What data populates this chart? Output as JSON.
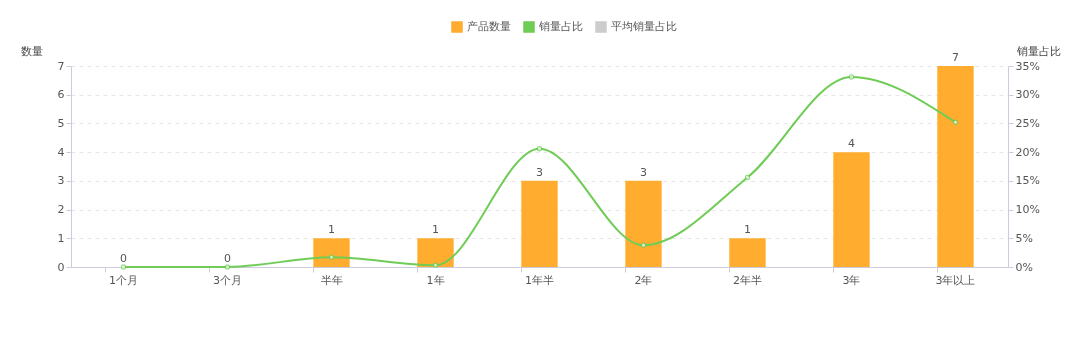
{
  "chart_data": {
    "type": "bar",
    "ylabel": "数量",
    "y2label": "销量占比",
    "categories": [
      "1个月",
      "3个月",
      "半年",
      "1年",
      "1年半",
      "2年",
      "2年半",
      "3年",
      "3年以上"
    ],
    "series": [
      {
        "name": "产品数量",
        "color": "#ffac2f",
        "values": [
          0,
          0,
          1,
          1,
          3,
          3,
          1,
          4,
          7
        ],
        "value_labels": [
          "0",
          "0",
          "1",
          "1",
          "3",
          "3",
          "1",
          "4",
          "7"
        ]
      },
      {
        "name": "销量占比",
        "type": "line",
        "axis": "y2",
        "color": "#6fcc56",
        "values": [
          0,
          0,
          1.7,
          0.3,
          20.6,
          3.8,
          15.6,
          33.1,
          25.2
        ]
      },
      {
        "name": "平均销量占比",
        "type": "line",
        "axis": "y2",
        "color": "#cccccc",
        "values": [
          null,
          null,
          null,
          null,
          null,
          null,
          null,
          null,
          null
        ]
      }
    ],
    "ylim": [
      0,
      7
    ],
    "yticks": [
      0,
      1,
      2,
      3,
      4,
      5,
      6,
      7
    ],
    "y2lim": [
      0,
      35
    ],
    "y2ticks": [
      {
        "value": 0,
        "label": "0%"
      },
      {
        "value": 5,
        "label": "5%"
      },
      {
        "value": 10,
        "label": "10%"
      },
      {
        "value": 15,
        "label": "15%"
      },
      {
        "value": 20,
        "label": "20%"
      },
      {
        "value": 25,
        "label": "25%"
      },
      {
        "value": 30,
        "label": "30%"
      },
      {
        "value": 35,
        "label": "35%"
      }
    ],
    "grid": "y",
    "legend": "top",
    "marker": "circle",
    "line_style": "solid"
  }
}
